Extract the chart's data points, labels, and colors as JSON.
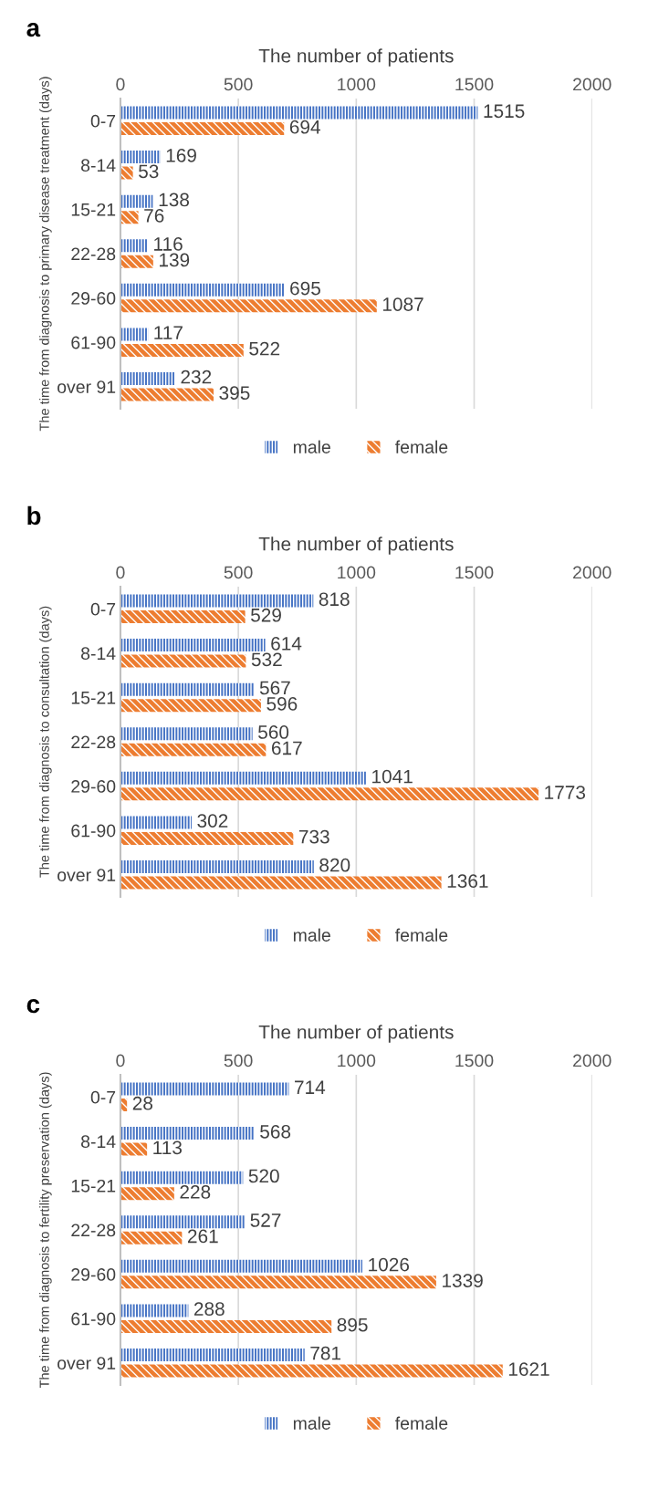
{
  "chart_data": [
    {
      "type": "bar",
      "orientation": "horizontal",
      "title": "a",
      "xlabel": "The number of patients",
      "ylabel": "The time from diagnosis to primary disease treatment (days)",
      "categories": [
        "0-7",
        "8-14",
        "15-21",
        "22-28",
        "29-60",
        "61-90",
        "over 91"
      ],
      "series": [
        {
          "name": "male",
          "color": "#4472c4",
          "values": [
            1515,
            169,
            138,
            116,
            695,
            117,
            232
          ]
        },
        {
          "name": "female",
          "color": "#ed7d31",
          "values": [
            694,
            53,
            76,
            139,
            1087,
            522,
            395
          ]
        }
      ],
      "xlim": [
        0,
        2000
      ],
      "xticks": [
        0,
        500,
        1000,
        1500,
        2000
      ],
      "grid": "x",
      "legend": "bottom",
      "data_labels": true
    },
    {
      "type": "bar",
      "orientation": "horizontal",
      "title": "b",
      "xlabel": "The number of patients",
      "ylabel": "The time from diagnosis to consultation (days)",
      "categories": [
        "0-7",
        "8-14",
        "15-21",
        "22-28",
        "29-60",
        "61-90",
        "over 91"
      ],
      "series": [
        {
          "name": "male",
          "color": "#4472c4",
          "values": [
            818,
            614,
            567,
            560,
            1041,
            302,
            820
          ]
        },
        {
          "name": "female",
          "color": "#ed7d31",
          "values": [
            529,
            532,
            596,
            617,
            1773,
            733,
            1361
          ]
        }
      ],
      "xlim": [
        0,
        2000
      ],
      "xticks": [
        0,
        500,
        1000,
        1500,
        2000
      ],
      "grid": "x",
      "legend": "bottom",
      "data_labels": true
    },
    {
      "type": "bar",
      "orientation": "horizontal",
      "title": "c",
      "xlabel": "The number of patients",
      "ylabel": "The time from diagnosis to fertility preservation (days)",
      "categories": [
        "0-7",
        "8-14",
        "15-21",
        "22-28",
        "29-60",
        "61-90",
        "over 91"
      ],
      "series": [
        {
          "name": "male",
          "color": "#4472c4",
          "values": [
            714,
            568,
            520,
            527,
            1026,
            288,
            781
          ]
        },
        {
          "name": "female",
          "color": "#ed7d31",
          "values": [
            28,
            113,
            228,
            261,
            1339,
            895,
            1621
          ]
        }
      ],
      "xlim": [
        0,
        2000
      ],
      "xticks": [
        0,
        500,
        1000,
        1500,
        2000
      ],
      "grid": "x",
      "legend": "bottom",
      "data_labels": true
    }
  ]
}
